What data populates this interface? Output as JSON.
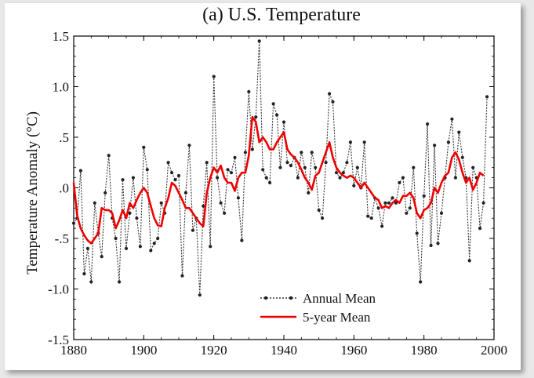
{
  "chart_data": {
    "type": "line",
    "title": "(a)  U.S. Temperature",
    "xlabel": "",
    "ylabel": "Temperature Anomaly (°C)",
    "xlim": [
      1880,
      2000
    ],
    "ylim": [
      -1.5,
      1.5
    ],
    "xticks": [
      1880,
      1900,
      1920,
      1940,
      1960,
      1980,
      2000
    ],
    "yticks": [
      -1.5,
      -1.0,
      -0.5,
      0.0,
      0.5,
      1.0,
      1.5
    ],
    "ytick_labels": [
      "-1.5",
      "-1.0",
      "-.5",
      ".0",
      ".5",
      "1.0",
      "1.5"
    ],
    "grid": false,
    "legend": "bottom-right",
    "series": [
      {
        "name": "Annual Mean",
        "style": "dotted-with-markers",
        "color": "#222222",
        "x": [
          1880,
          1881,
          1882,
          1883,
          1884,
          1885,
          1886,
          1887,
          1888,
          1889,
          1890,
          1891,
          1892,
          1893,
          1894,
          1895,
          1896,
          1897,
          1898,
          1899,
          1900,
          1901,
          1902,
          1903,
          1904,
          1905,
          1906,
          1907,
          1908,
          1909,
          1910,
          1911,
          1912,
          1913,
          1914,
          1915,
          1916,
          1917,
          1918,
          1919,
          1920,
          1921,
          1922,
          1923,
          1924,
          1925,
          1926,
          1927,
          1928,
          1929,
          1930,
          1931,
          1932,
          1933,
          1934,
          1935,
          1936,
          1937,
          1938,
          1939,
          1940,
          1941,
          1942,
          1943,
          1944,
          1945,
          1946,
          1947,
          1948,
          1949,
          1950,
          1951,
          1952,
          1953,
          1954,
          1955,
          1956,
          1957,
          1958,
          1959,
          1960,
          1961,
          1962,
          1963,
          1964,
          1965,
          1966,
          1967,
          1968,
          1969,
          1970,
          1971,
          1972,
          1973,
          1974,
          1975,
          1976,
          1977,
          1978,
          1979,
          1980,
          1981,
          1982,
          1983,
          1984,
          1985,
          1986,
          1987,
          1988,
          1989,
          1990,
          1991,
          1992,
          1993,
          1994,
          1995,
          1996,
          1997,
          1998
        ],
        "values": [
          -0.35,
          -0.3,
          0.17,
          -0.85,
          -0.6,
          -0.93,
          -0.15,
          -0.45,
          -0.68,
          -0.05,
          0.32,
          -0.3,
          -0.5,
          -0.93,
          0.08,
          -0.6,
          -0.25,
          0.1,
          -0.3,
          -0.58,
          0.4,
          0.18,
          -0.62,
          -0.55,
          -0.5,
          -0.15,
          -0.25,
          0.25,
          0.15,
          0.08,
          0.12,
          -0.87,
          -0.05,
          0.42,
          -0.42,
          -0.3,
          -1.06,
          -0.18,
          0.25,
          -0.58,
          1.1,
          0.1,
          -0.15,
          -0.25,
          0.18,
          0.15,
          0.3,
          -0.1,
          -0.52,
          0.35,
          0.95,
          0.38,
          0.7,
          1.45,
          0.18,
          0.1,
          0.05,
          0.83,
          0.72,
          0.2,
          0.65,
          0.25,
          0.22,
          0.3,
          0.1,
          0.35,
          0.2,
          -0.05,
          0.35,
          0.2,
          -0.22,
          -0.3,
          0.25,
          0.93,
          0.85,
          0.15,
          0.1,
          0.15,
          0.25,
          0.45,
          0.02,
          0.2,
          0.0,
          0.45,
          -0.28,
          -0.3,
          -0.1,
          -0.2,
          -0.38,
          -0.15,
          -0.15,
          -0.1,
          -0.15,
          0.05,
          0.1,
          -0.25,
          -0.2,
          0.2,
          -0.45,
          -0.93,
          -0.08,
          0.63,
          -0.57,
          0.42,
          -0.55,
          -0.25,
          0.1,
          0.45,
          0.68,
          0.1,
          0.55,
          0.3,
          0.1,
          -0.72,
          0.2,
          0.1,
          -0.4,
          -0.15,
          0.9
        ]
      },
      {
        "name": "5-year Mean",
        "style": "solid",
        "color": "#ee0000",
        "x": [
          1880,
          1881,
          1882,
          1883,
          1884,
          1885,
          1886,
          1887,
          1888,
          1889,
          1890,
          1891,
          1892,
          1893,
          1894,
          1895,
          1896,
          1897,
          1898,
          1899,
          1900,
          1901,
          1902,
          1903,
          1904,
          1905,
          1906,
          1907,
          1908,
          1909,
          1910,
          1911,
          1912,
          1913,
          1914,
          1915,
          1916,
          1917,
          1918,
          1919,
          1920,
          1921,
          1922,
          1923,
          1924,
          1925,
          1926,
          1927,
          1928,
          1929,
          1930,
          1931,
          1932,
          1933,
          1934,
          1935,
          1936,
          1937,
          1938,
          1939,
          1940,
          1941,
          1942,
          1943,
          1944,
          1945,
          1946,
          1947,
          1948,
          1949,
          1950,
          1951,
          1952,
          1953,
          1954,
          1955,
          1956,
          1957,
          1958,
          1959,
          1960,
          1961,
          1962,
          1963,
          1964,
          1965,
          1966,
          1967,
          1968,
          1969,
          1970,
          1971,
          1972,
          1973,
          1974,
          1975,
          1976,
          1977,
          1978,
          1979,
          1980,
          1981,
          1982,
          1983,
          1984,
          1985,
          1986,
          1987,
          1988,
          1989,
          1990,
          1991,
          1992,
          1993,
          1994,
          1995,
          1996,
          1997
        ],
        "values": [
          0.05,
          -0.28,
          -0.4,
          -0.47,
          -0.52,
          -0.55,
          -0.5,
          -0.45,
          -0.2,
          -0.22,
          -0.22,
          -0.25,
          -0.4,
          -0.32,
          -0.22,
          -0.3,
          -0.15,
          -0.2,
          -0.12,
          -0.05,
          0.0,
          -0.05,
          -0.18,
          -0.3,
          -0.37,
          -0.38,
          -0.2,
          -0.1,
          0.05,
          0.02,
          -0.05,
          -0.12,
          -0.2,
          -0.2,
          -0.25,
          -0.3,
          -0.35,
          -0.38,
          -0.05,
          0.1,
          0.2,
          0.15,
          0.22,
          0.1,
          0.05,
          0.05,
          -0.03,
          0.1,
          0.15,
          0.15,
          0.32,
          0.7,
          0.65,
          0.45,
          0.5,
          0.45,
          0.38,
          0.38,
          0.45,
          0.5,
          0.55,
          0.38,
          0.33,
          0.3,
          0.25,
          0.18,
          0.1,
          0.05,
          -0.02,
          0.12,
          0.15,
          0.25,
          0.35,
          0.45,
          0.3,
          0.2,
          0.15,
          0.12,
          0.1,
          0.12,
          0.1,
          0.05,
          0.0,
          0.05,
          0.0,
          -0.05,
          -0.1,
          -0.12,
          -0.2,
          -0.18,
          -0.2,
          -0.15,
          -0.12,
          -0.15,
          -0.08,
          -0.08,
          -0.05,
          -0.1,
          -0.25,
          -0.3,
          -0.22,
          -0.2,
          -0.15,
          0.0,
          -0.05,
          0.05,
          0.12,
          0.15,
          0.3,
          0.35,
          0.28,
          0.15,
          0.05,
          0.1,
          -0.02,
          0.05,
          0.15,
          0.12
        ]
      }
    ]
  }
}
